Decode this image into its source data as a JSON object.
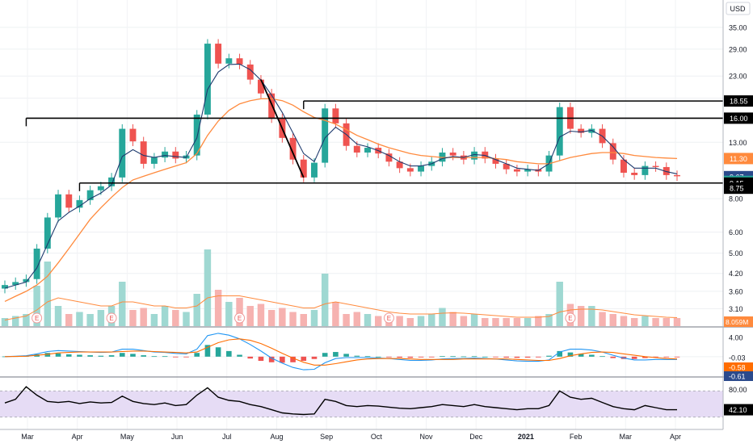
{
  "currency_label": "USD",
  "chart_data": {
    "type": "candlestick",
    "x_labels": [
      "Mar",
      "Apr",
      "May",
      "Jun",
      "Jul",
      "Aug",
      "Sep",
      "Oct",
      "Nov",
      "Dec",
      "2021",
      "Feb",
      "Mar",
      "Apr"
    ],
    "y_scale": "log",
    "y_ticks": [
      "35.00",
      "29.00",
      "23.00",
      "19.00",
      "13.00",
      "8.00",
      "6.00",
      "5.00",
      "4.20",
      "3.60",
      "3.10"
    ],
    "price_close": [
      3.8,
      3.9,
      4.0,
      5.2,
      6.8,
      8.3,
      7.4,
      7.9,
      8.6,
      8.9,
      9.6,
      14.6,
      13.1,
      10.8,
      11.4,
      12.0,
      11.3,
      11.6,
      16.5,
      30.4,
      25.6,
      26.8,
      25.4,
      22.3,
      19.8,
      16.0,
      13.5,
      11.2,
      9.6,
      10.9,
      17.4,
      15.3,
      12.6,
      11.9,
      12.4,
      11.8,
      11.0,
      10.4,
      10.1,
      10.6,
      11.0,
      11.9,
      11.6,
      11.2,
      12.0,
      11.3,
      10.8,
      10.3,
      10.1,
      10.3,
      10.1,
      11.6,
      17.6,
      14.6,
      14.1,
      14.6,
      12.9,
      11.2,
      10.0,
      9.8,
      10.6,
      10.5,
      9.8,
      9.7
    ],
    "ma_fast": [
      3.7,
      3.8,
      3.9,
      4.4,
      5.4,
      6.6,
      7.1,
      7.5,
      8.0,
      8.4,
      9.0,
      11.5,
      12.2,
      11.6,
      11.4,
      11.6,
      11.5,
      11.4,
      13.5,
      20.5,
      23.8,
      25.4,
      25.5,
      24.3,
      22.2,
      19.5,
      16.8,
      14.1,
      11.8,
      11.0,
      13.5,
      14.8,
      13.9,
      12.8,
      12.5,
      12.1,
      11.6,
      11.0,
      10.6,
      10.6,
      10.8,
      11.3,
      11.5,
      11.4,
      11.7,
      11.6,
      11.2,
      10.8,
      10.4,
      10.3,
      10.2,
      10.8,
      13.6,
      14.3,
      14.2,
      14.4,
      13.7,
      12.5,
      11.2,
      10.4,
      10.4,
      10.4,
      10.1,
      9.9
    ],
    "ma_slow": [
      3.3,
      3.45,
      3.6,
      3.8,
      4.1,
      4.6,
      5.2,
      5.9,
      6.7,
      7.4,
      8.1,
      8.8,
      9.4,
      9.7,
      10.0,
      10.3,
      10.6,
      10.9,
      11.8,
      13.8,
      15.6,
      17.1,
      18.1,
      18.6,
      18.9,
      18.9,
      18.6,
      17.9,
      16.9,
      16.1,
      15.7,
      15.2,
      14.5,
      13.8,
      13.3,
      12.8,
      12.4,
      12.1,
      11.8,
      11.6,
      11.5,
      11.4,
      11.4,
      11.4,
      11.4,
      11.4,
      11.3,
      11.2,
      11.0,
      10.9,
      10.8,
      10.8,
      11.1,
      11.4,
      11.6,
      11.8,
      11.9,
      11.9,
      11.8,
      11.6,
      11.5,
      11.4,
      11.35,
      11.3
    ],
    "volume": [
      0.2,
      0.25,
      0.3,
      1.0,
      1.6,
      0.5,
      0.3,
      0.35,
      0.3,
      0.4,
      0.5,
      1.1,
      0.4,
      0.45,
      0.3,
      0.5,
      0.4,
      0.35,
      0.8,
      1.9,
      0.9,
      0.6,
      0.7,
      0.5,
      0.55,
      0.4,
      0.45,
      0.35,
      0.3,
      0.4,
      1.3,
      0.6,
      0.3,
      0.35,
      0.3,
      0.25,
      0.3,
      0.25,
      0.2,
      0.25,
      0.3,
      0.45,
      0.35,
      0.25,
      0.3,
      0.2,
      0.2,
      0.2,
      0.2,
      0.2,
      0.25,
      0.3,
      1.1,
      0.55,
      0.5,
      0.5,
      0.35,
      0.3,
      0.25,
      0.2,
      0.25,
      0.2,
      0.2,
      0.2
    ],
    "volume_ma": [
      0.15,
      0.2,
      0.25,
      0.4,
      0.6,
      0.7,
      0.65,
      0.6,
      0.55,
      0.5,
      0.5,
      0.6,
      0.6,
      0.55,
      0.5,
      0.5,
      0.45,
      0.45,
      0.5,
      0.7,
      0.75,
      0.75,
      0.75,
      0.7,
      0.65,
      0.6,
      0.55,
      0.5,
      0.45,
      0.45,
      0.55,
      0.6,
      0.55,
      0.5,
      0.45,
      0.4,
      0.35,
      0.32,
      0.3,
      0.3,
      0.3,
      0.32,
      0.33,
      0.32,
      0.3,
      0.28,
      0.26,
      0.24,
      0.22,
      0.22,
      0.22,
      0.24,
      0.35,
      0.4,
      0.42,
      0.42,
      0.4,
      0.36,
      0.32,
      0.28,
      0.26,
      0.24,
      0.22,
      0.21
    ],
    "macd_hist": [
      0.05,
      0.1,
      0.2,
      0.5,
      0.8,
      0.7,
      0.5,
      0.4,
      0.3,
      0.2,
      0.3,
      0.8,
      0.6,
      0.3,
      0.1,
      0.1,
      -0.1,
      -0.05,
      0.8,
      2.5,
      2.0,
      1.2,
      0.4,
      -0.4,
      -0.9,
      -1.2,
      -1.3,
      -1.2,
      -0.9,
      -0.5,
      0.8,
      1.0,
      0.6,
      0.2,
      0.1,
      0.0,
      -0.1,
      -0.2,
      -0.25,
      -0.15,
      -0.05,
      0.1,
      0.1,
      0.05,
      0.1,
      0.0,
      -0.1,
      -0.2,
      -0.25,
      -0.2,
      -0.15,
      0.2,
      1.2,
      0.9,
      0.6,
      0.4,
      0.1,
      -0.3,
      -0.5,
      -0.5,
      -0.3,
      -0.1,
      -0.1,
      -0.1
    ],
    "macd_line": [
      0.0,
      0.1,
      0.2,
      0.6,
      1.1,
      1.3,
      1.2,
      1.1,
      1.0,
      0.9,
      1.0,
      1.6,
      1.6,
      1.3,
      1.0,
      0.9,
      0.7,
      0.6,
      1.6,
      4.5,
      5.0,
      4.6,
      3.8,
      2.6,
      1.2,
      -0.3,
      -1.4,
      -2.3,
      -2.8,
      -2.7,
      -1.3,
      -0.4,
      -0.2,
      -0.2,
      -0.2,
      -0.3,
      -0.4,
      -0.6,
      -0.8,
      -0.8,
      -0.7,
      -0.5,
      -0.4,
      -0.4,
      -0.3,
      -0.4,
      -0.5,
      -0.7,
      -0.9,
      -1.0,
      -1.0,
      -0.7,
      1.0,
      1.6,
      1.6,
      1.4,
      1.0,
      0.3,
      -0.3,
      -0.7,
      -0.7,
      -0.6,
      -0.6,
      -0.6
    ],
    "macd_signal": [
      0.0,
      0.05,
      0.1,
      0.3,
      0.5,
      0.8,
      0.9,
      1.0,
      1.0,
      1.0,
      1.0,
      1.1,
      1.2,
      1.2,
      1.1,
      1.0,
      0.9,
      0.8,
      1.0,
      2.0,
      3.0,
      3.6,
      3.8,
      3.5,
      2.8,
      1.8,
      0.7,
      -0.3,
      -1.2,
      -1.8,
      -1.8,
      -1.5,
      -1.1,
      -0.7,
      -0.5,
      -0.4,
      -0.4,
      -0.4,
      -0.5,
      -0.6,
      -0.6,
      -0.6,
      -0.6,
      -0.5,
      -0.5,
      -0.5,
      -0.5,
      -0.5,
      -0.6,
      -0.7,
      -0.8,
      -0.8,
      -0.4,
      0.2,
      0.6,
      0.9,
      1.0,
      0.9,
      0.6,
      0.3,
      0.0,
      -0.2,
      -0.4,
      -0.5
    ],
    "macd_ticks": [
      "4.00"
    ],
    "macd_labels": [
      "-0.03",
      "-0.58",
      "-0.61"
    ],
    "rsi": [
      55,
      62,
      86,
      70,
      58,
      56,
      58,
      54,
      57,
      55,
      56,
      68,
      58,
      54,
      52,
      55,
      50,
      52,
      70,
      84,
      66,
      60,
      58,
      52,
      48,
      42,
      36,
      34,
      33,
      34,
      62,
      58,
      50,
      48,
      50,
      49,
      47,
      45,
      44,
      46,
      48,
      52,
      50,
      48,
      52,
      48,
      46,
      44,
      42,
      44,
      44,
      50,
      78,
      66,
      62,
      64,
      56,
      48,
      44,
      42,
      50,
      46,
      42,
      42
    ],
    "rsi_ticks": [
      "80.00"
    ],
    "rsi_value_label": "42.10",
    "price_labels": [
      {
        "text": "18.55",
        "value": 18.55,
        "style": "black"
      },
      {
        "text": "16.00",
        "value": 16.0,
        "style": "black"
      },
      {
        "text": "11.30",
        "value": 11.3,
        "style": "orange"
      },
      {
        "text": "9.67",
        "value": 9.67,
        "style": "blue"
      },
      {
        "text": "9.28",
        "value": 9.28,
        "style": "teal"
      },
      {
        "text": "9.15",
        "value": 9.15,
        "style": "black"
      },
      {
        "text": "8.75",
        "value": 8.75,
        "style": "black"
      }
    ],
    "volume_label": "8.059M",
    "earnings_marker": "E",
    "earnings_at": [
      3,
      10,
      22,
      36,
      53
    ],
    "levels": [
      {
        "value": 18.55,
        "from": 28,
        "to": 64
      },
      {
        "value": 16.0,
        "from": 2,
        "to": 64
      },
      {
        "value": 9.15,
        "from": 7,
        "to": 64
      }
    ],
    "trendline": {
      "from_index": 24,
      "from_value": 22.3,
      "to_index": 28,
      "to_value": 9.6
    },
    "colors": {
      "up": "#26a69a",
      "down": "#ef5350",
      "ma_fast": "#1e3a6e",
      "ma_slow": "#ff8a3d",
      "rsi_band": "#e6dcf5",
      "rsi_line": "#000000",
      "macd": "#2196f3",
      "signal": "#ff6d00"
    }
  }
}
